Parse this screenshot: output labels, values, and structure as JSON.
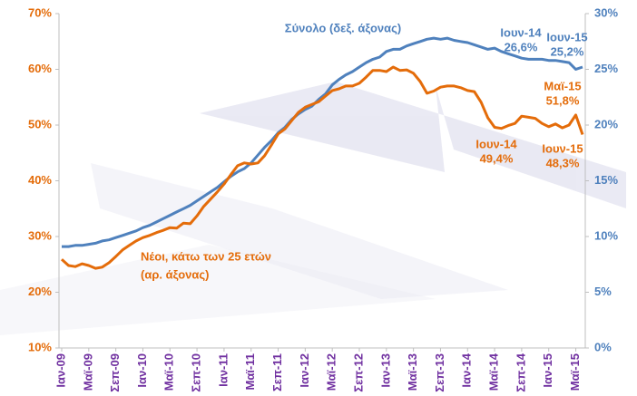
{
  "chart_data": {
    "type": "line",
    "categories": [
      "Ιαν-09",
      null,
      null,
      null,
      "Μαϊ-09",
      null,
      null,
      null,
      "Σεπ-09",
      null,
      null,
      null,
      "Ιαν-10",
      null,
      null,
      null,
      "Μαϊ-10",
      null,
      null,
      null,
      "Σεπ-10",
      null,
      null,
      null,
      "Ιαν-11",
      null,
      null,
      null,
      "Μαϊ-11",
      null,
      null,
      null,
      "Σεπ-11",
      null,
      null,
      null,
      "Ιαν-12",
      null,
      null,
      null,
      "Μαϊ-12",
      null,
      null,
      null,
      "Σεπ-12",
      null,
      null,
      null,
      "Ιαν-13",
      null,
      null,
      null,
      "Μαϊ-13",
      null,
      null,
      null,
      "Σεπ-13",
      null,
      null,
      null,
      "Ιαν-14",
      null,
      null,
      null,
      "Μαϊ-14",
      null,
      null,
      null,
      "Σεπ-14",
      null,
      null,
      null,
      "Ιαν-15",
      null,
      null,
      null,
      "Μαϊ-15",
      null
    ],
    "series": [
      {
        "name": "Σύνολο (δεξ. άξονας)",
        "color": "#4f81bd",
        "axis": "y2",
        "values": [
          9.1,
          9.1,
          9.2,
          9.2,
          9.3,
          9.4,
          9.6,
          9.7,
          9.9,
          10.1,
          10.3,
          10.5,
          10.8,
          11.0,
          11.3,
          11.6,
          11.9,
          12.2,
          12.5,
          12.8,
          13.2,
          13.6,
          14.0,
          14.4,
          14.9,
          15.4,
          15.8,
          16.1,
          16.6,
          17.3,
          18.0,
          18.6,
          19.3,
          19.8,
          20.5,
          21.0,
          21.4,
          21.7,
          22.3,
          22.8,
          23.6,
          24.1,
          24.5,
          24.8,
          25.2,
          25.6,
          25.9,
          26.1,
          26.6,
          26.8,
          26.8,
          27.1,
          27.3,
          27.5,
          27.7,
          27.8,
          27.7,
          27.8,
          27.6,
          27.5,
          27.4,
          27.2,
          27.0,
          26.8,
          26.9,
          26.6,
          26.4,
          26.2,
          26.0,
          25.9,
          25.9,
          25.9,
          25.8,
          25.8,
          25.7,
          25.6,
          25.0,
          25.2
        ]
      },
      {
        "name": "Νέοι, κάτω των 25 ετών",
        "axis_note": "(αρ. άξονας)",
        "color": "#e46c0a",
        "axis": "y",
        "values": [
          25.9,
          24.8,
          24.6,
          25.1,
          24.8,
          24.3,
          24.5,
          25.3,
          26.4,
          27.6,
          28.4,
          29.2,
          29.8,
          30.2,
          30.7,
          31.1,
          31.6,
          31.5,
          32.4,
          32.3,
          33.7,
          35.4,
          36.7,
          38.0,
          39.4,
          41.1,
          42.7,
          43.2,
          43.0,
          43.2,
          44.5,
          46.4,
          48.4,
          49.3,
          50.8,
          52.3,
          53.2,
          53.7,
          54.2,
          55.2,
          56.2,
          56.5,
          57.0,
          57.0,
          57.5,
          58.6,
          59.8,
          59.8,
          59.6,
          60.4,
          59.8,
          59.9,
          59.3,
          57.8,
          55.7,
          56.1,
          56.8,
          57.0,
          57.0,
          56.7,
          56.2,
          56.0,
          54.1,
          51.3,
          49.6,
          49.4,
          49.9,
          50.3,
          51.6,
          51.4,
          51.2,
          50.3,
          49.7,
          50.2,
          49.5,
          50.0,
          51.8,
          48.3
        ]
      }
    ],
    "ylim": [
      10,
      70
    ],
    "yticks": [
      {
        "value": 10,
        "label": "10%"
      },
      {
        "value": 20,
        "label": "20%"
      },
      {
        "value": 30,
        "label": "30%"
      },
      {
        "value": 40,
        "label": "40%"
      },
      {
        "value": 50,
        "label": "50%"
      },
      {
        "value": 60,
        "label": "60%"
      },
      {
        "value": 70,
        "label": "70%"
      }
    ],
    "y2lim": [
      0,
      30
    ],
    "y2ticks": [
      {
        "value": 0,
        "label": "0%"
      },
      {
        "value": 5,
        "label": "5%"
      },
      {
        "value": 10,
        "label": "10%"
      },
      {
        "value": 15,
        "label": "15%"
      },
      {
        "value": 20,
        "label": "20%"
      },
      {
        "value": 25,
        "label": "25%"
      },
      {
        "value": 30,
        "label": "30%"
      }
    ],
    "annotations": [
      {
        "lines": [
          "Ιουν-14",
          "26,6%"
        ],
        "color": "#4f81bd"
      },
      {
        "lines": [
          "Ιουν-15",
          "25,2%"
        ],
        "color": "#4f81bd"
      },
      {
        "lines": [
          "Μαϊ-15",
          "51,8%"
        ],
        "color": "#e46c0a"
      },
      {
        "lines": [
          "Ιουν-14",
          "49,4%"
        ],
        "color": "#e46c0a"
      },
      {
        "lines": [
          "Ιουν-15",
          "48,3%"
        ],
        "color": "#e46c0a"
      }
    ],
    "x_label_color": "#7030a0"
  }
}
